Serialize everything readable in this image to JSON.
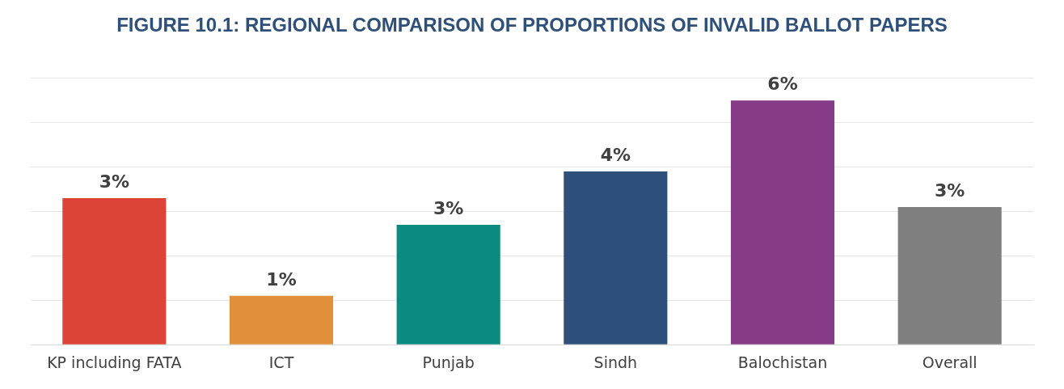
{
  "chart_data": {
    "type": "bar",
    "title": "FIGURE 10.1: REGIONAL COMPARISON OF PROPORTIONS OF INVALID BALLOT PAPERS",
    "categories": [
      "KP including FATA",
      "ICT",
      "Punjab",
      "Sindh",
      "Balochistan",
      "Overall"
    ],
    "values": [
      3.3,
      1.1,
      2.7,
      3.9,
      5.5,
      3.1
    ],
    "value_labels": [
      "3%",
      "1%",
      "3%",
      "4%",
      "6%",
      "3%"
    ],
    "colors": [
      "#db4437",
      "#e28f3a",
      "#0b8a80",
      "#2e507b",
      "#863b87",
      "#7f7f7f"
    ],
    "ylim": [
      0,
      6
    ],
    "yticks": [
      {
        "value": 0,
        "label": null
      },
      {
        "value": 1,
        "label": null
      },
      {
        "value": 2,
        "label": null
      },
      {
        "value": 3,
        "label": null
      },
      {
        "value": 4,
        "label": null
      },
      {
        "value": 5,
        "label": null
      },
      {
        "value": 6,
        "label": null
      }
    ],
    "tick_labels": "x",
    "grid": "y",
    "legend": false
  }
}
